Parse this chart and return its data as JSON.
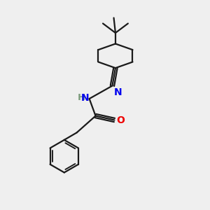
{
  "bg_color": "#efefef",
  "bond_color": "#1a1a1a",
  "N_color": "#0000ee",
  "O_color": "#ee0000",
  "H_color": "#7a9a7a",
  "line_width": 1.6,
  "font_size": 9.5,
  "fig_w": 3.0,
  "fig_h": 3.0,
  "dpi": 100,
  "xlim": [
    0,
    10
  ],
  "ylim": [
    0,
    10
  ]
}
